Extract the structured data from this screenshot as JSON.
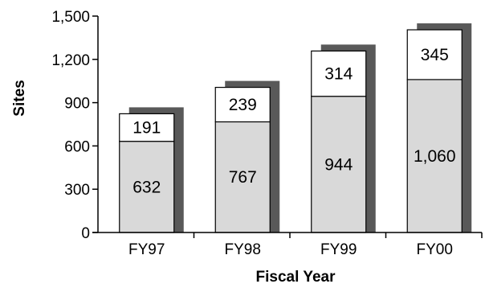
{
  "chart_data": {
    "type": "bar",
    "stacked": true,
    "shadow": true,
    "title": "",
    "xlabel": "Fiscal Year",
    "ylabel": "Sites",
    "ylim": [
      0,
      1500
    ],
    "yticks": [
      0,
      300,
      600,
      900,
      1200,
      1500
    ],
    "ytick_labels": [
      "0",
      "300",
      "600",
      "900",
      "1,200",
      "1,500"
    ],
    "grid": false,
    "legend": "none",
    "categories": [
      "FY97",
      "FY98",
      "FY99",
      "FY00"
    ],
    "series": [
      {
        "values": [
          632,
          767,
          944,
          1060
        ],
        "labels": [
          "632",
          "767",
          "944",
          "1,060"
        ],
        "color": "#d9d9d9"
      },
      {
        "values": [
          191,
          239,
          314,
          345
        ],
        "labels": [
          "191",
          "239",
          "314",
          "345"
        ],
        "color": "#ffffff"
      }
    ],
    "shadow_color": "#595959"
  }
}
